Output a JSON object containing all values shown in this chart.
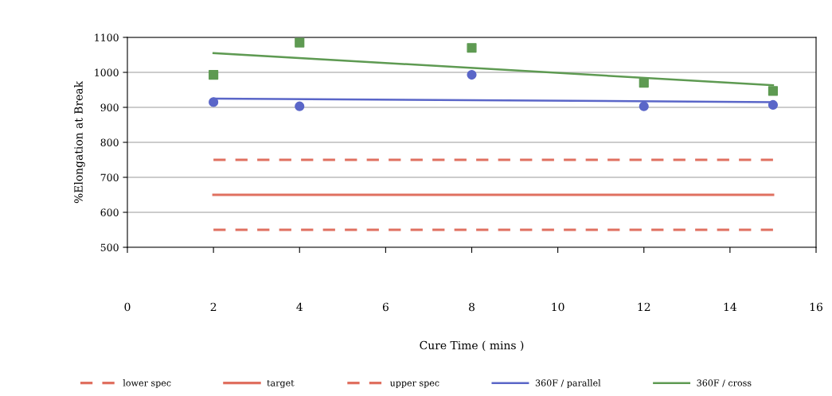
{
  "chart_data": {
    "type": "line",
    "xlabel": "Cure Time ( mins )",
    "ylabel": "%Elongation at Break",
    "xlim": [
      0,
      16
    ],
    "xticks": [
      0,
      2,
      4,
      6,
      8,
      10,
      12,
      14,
      16
    ],
    "ylim": [
      500,
      1100
    ],
    "yticks": [
      500,
      600,
      700,
      800,
      900,
      1000,
      1100
    ],
    "grid": "y",
    "legend": "bottom",
    "series": [
      {
        "name": "lower spec",
        "color": "#e07060",
        "line_style": "dashed",
        "marker": "none",
        "x": [
          2,
          15
        ],
        "values": [
          550,
          550
        ]
      },
      {
        "name": "target",
        "color": "#e07060",
        "line_style": "solid",
        "marker": "none",
        "x": [
          2,
          15
        ],
        "values": [
          650,
          650
        ]
      },
      {
        "name": "upper spec",
        "color": "#e07060",
        "line_style": "dashed",
        "marker": "none",
        "x": [
          2,
          15
        ],
        "values": [
          750,
          750
        ]
      },
      {
        "name": "360F / parallel",
        "color": "#5a66c8",
        "line_style": "solid",
        "marker": "none",
        "x": [
          2,
          15
        ],
        "values": [
          925,
          915
        ]
      },
      {
        "name": "360F / cross",
        "color": "#5e9a52",
        "line_style": "solid",
        "marker": "none",
        "x": [
          2,
          15
        ],
        "values": [
          1055,
          963
        ]
      },
      {
        "type": "scatter",
        "color": "#5a66c8",
        "marker": "circle",
        "x": [
          2,
          4,
          8,
          12,
          15
        ],
        "values": [
          915,
          903,
          993,
          903,
          907
        ]
      },
      {
        "type": "scatter",
        "color": "#5e9a52",
        "marker": "square",
        "x": [
          2,
          4,
          8,
          12,
          15
        ],
        "values": [
          993,
          1085,
          1070,
          970,
          947
        ]
      }
    ]
  }
}
